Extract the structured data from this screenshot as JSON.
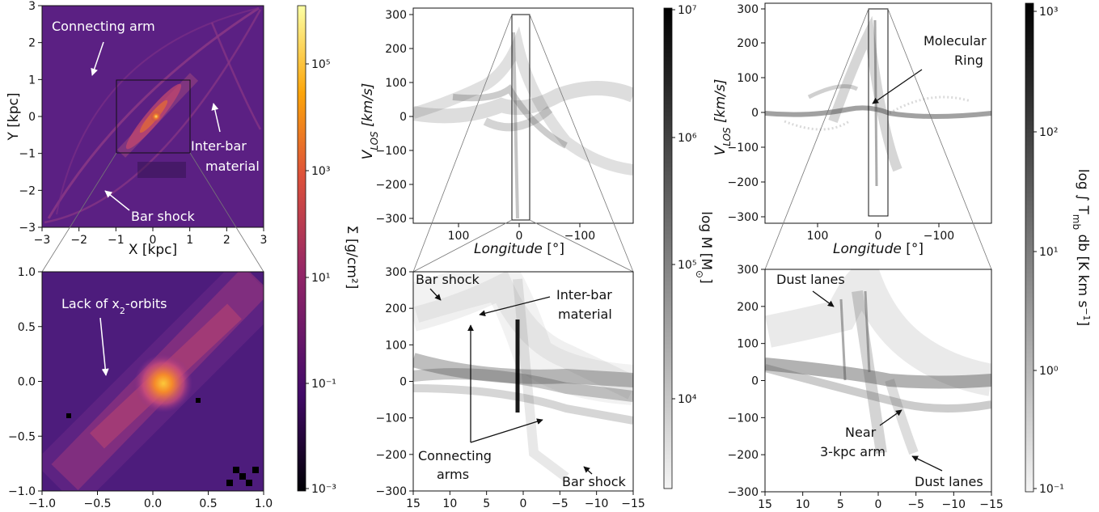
{
  "chart_data": [
    {
      "type": "heatmap",
      "xlabel": "X [kpc]",
      "ylabel": "Y [kpc]",
      "xlim": [
        -3,
        3
      ],
      "ylim": [
        -3,
        3
      ],
      "xticks": [
        "−3",
        "−2",
        "−1",
        "0",
        "1",
        "2",
        "3"
      ],
      "yticks": [
        "3",
        "2",
        "1",
        "0",
        "−1",
        "−2",
        "−3"
      ],
      "annotations": [
        "Connecting arm",
        "Inter-bar",
        "material",
        "Bar shock"
      ],
      "inset_box": [
        -1,
        1,
        -1,
        1
      ],
      "bar_angle_deg": 45
    },
    {
      "type": "heatmap",
      "xlim": [
        -1.0,
        1.0
      ],
      "ylim": [
        -1.0,
        1.0
      ],
      "xticks": [
        "−1.0",
        "−0.5",
        "0.0",
        "0.5",
        "1.0"
      ],
      "yticks": [
        "1.0",
        "0.5",
        "0.0",
        "−0.5",
        "−1.0"
      ],
      "annotations": [
        "Lack of x",
        "2",
        "-orbits"
      ]
    },
    {
      "type": "colorbar",
      "label": "Σ [g/cm²]",
      "scale": "log",
      "range": [
        0.001,
        10000000
      ],
      "ticks": [
        "10⁻³",
        "10⁻¹",
        "10¹",
        "10³",
        "10⁵"
      ],
      "colors": [
        "#000004",
        "#420a68",
        "#932667",
        "#dd513a",
        "#fca50a",
        "#fcffa4"
      ]
    },
    {
      "type": "heatmap",
      "xlabel": "Longitude [°]",
      "ylabel": "V_LOS [km/s]",
      "xlim": [
        180,
        -180
      ],
      "ylim": [
        -320,
        320
      ],
      "xticks": [
        "100",
        "0",
        "−100"
      ],
      "yticks": [
        "300",
        "200",
        "100",
        "0",
        "−100",
        "−200",
        "−300"
      ],
      "inset_box": [
        15,
        -15,
        -300,
        300
      ]
    },
    {
      "type": "heatmap",
      "xlim": [
        15,
        -15
      ],
      "ylim": [
        -300,
        300
      ],
      "xticks": [
        "15",
        "10",
        "5",
        "0",
        "−5",
        "−10",
        "−15"
      ],
      "yticks": [
        "300",
        "200",
        "100",
        "0",
        "−100",
        "−200",
        "−300"
      ],
      "annotations": [
        "Bar shock",
        "Inter-bar",
        "material",
        "Connecting",
        "arms",
        "Bar shock"
      ]
    },
    {
      "type": "colorbar",
      "label": "log M [M⊙]",
      "scale": "log",
      "range": [
        1000,
        10000000
      ],
      "ticks": [
        "10⁴",
        "10⁵",
        "10⁶",
        "10⁷"
      ],
      "colors": [
        "#f4f4f4",
        "#000000"
      ]
    },
    {
      "type": "heatmap",
      "xlabel": "Longitude [°]",
      "ylabel": "V_LOS [km/s]",
      "xlim": [
        180,
        -180
      ],
      "ylim": [
        -320,
        320
      ],
      "xticks": [
        "100",
        "0",
        "−100"
      ],
      "yticks": [
        "300",
        "200",
        "100",
        "0",
        "−100",
        "−200",
        "−300"
      ],
      "annotations": [
        "Molecular",
        "Ring"
      ],
      "inset_box": [
        15,
        -15,
        -300,
        300
      ]
    },
    {
      "type": "heatmap",
      "xlim": [
        15,
        -15
      ],
      "ylim": [
        -300,
        300
      ],
      "xticks": [
        "15",
        "10",
        "5",
        "0",
        "−5",
        "−10",
        "−15"
      ],
      "yticks": [
        "300",
        "200",
        "100",
        "0",
        "−100",
        "−200",
        "−300"
      ],
      "annotations": [
        "Dust lanes",
        "Near",
        "3-kpc arm",
        "Dust lanes"
      ]
    },
    {
      "type": "colorbar",
      "label": "log ∫ T_mb db [K km s⁻¹]",
      "scale": "log",
      "range": [
        0.1,
        1000
      ],
      "ticks": [
        "10⁻¹",
        "10⁰",
        "10¹",
        "10²",
        "10³"
      ],
      "colors": [
        "#f4f4f4",
        "#000000"
      ]
    }
  ]
}
